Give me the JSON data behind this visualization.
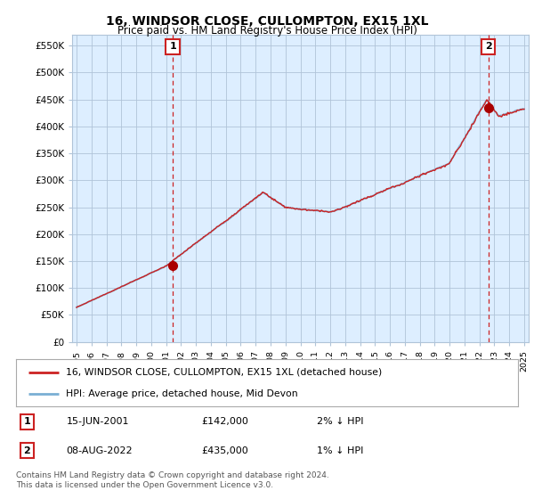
{
  "title": "16, WINDSOR CLOSE, CULLOMPTON, EX15 1XL",
  "subtitle": "Price paid vs. HM Land Registry's House Price Index (HPI)",
  "ylabel_ticks": [
    "£0",
    "£50K",
    "£100K",
    "£150K",
    "£200K",
    "£250K",
    "£300K",
    "£350K",
    "£400K",
    "£450K",
    "£500K",
    "£550K"
  ],
  "ytick_values": [
    0,
    50000,
    100000,
    150000,
    200000,
    250000,
    300000,
    350000,
    400000,
    450000,
    500000,
    550000
  ],
  "ylim": [
    0,
    570000
  ],
  "xlim_start": 1994.7,
  "xlim_end": 2025.3,
  "sale1_year": 2001.45,
  "sale1_price": 142000,
  "sale1_label": "1",
  "sale2_year": 2022.6,
  "sale2_price": 435000,
  "sale2_label": "2",
  "legend_line1": "16, WINDSOR CLOSE, CULLOMPTON, EX15 1XL (detached house)",
  "legend_line2": "HPI: Average price, detached house, Mid Devon",
  "table_row1": [
    "1",
    "15-JUN-2001",
    "£142,000",
    "2% ↓ HPI"
  ],
  "table_row2": [
    "2",
    "08-AUG-2022",
    "£435,000",
    "1% ↓ HPI"
  ],
  "footer": "Contains HM Land Registry data © Crown copyright and database right 2024.\nThis data is licensed under the Open Government Licence v3.0.",
  "hpi_color": "#7aafd4",
  "price_color": "#cc2222",
  "vline_color": "#cc2222",
  "bg_color": "#ffffff",
  "plot_bg_color": "#ddeeff",
  "grid_color": "#b0c4d8",
  "dot_color": "#aa0000"
}
